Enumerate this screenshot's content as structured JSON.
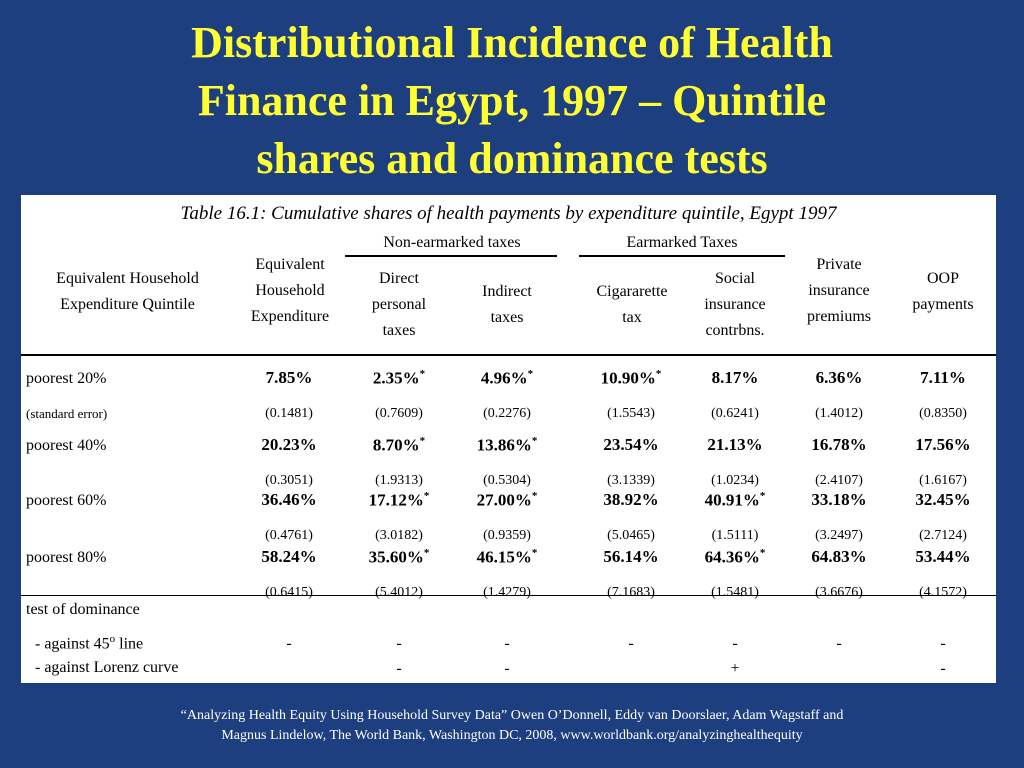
{
  "title": {
    "line1": "Distributional Incidence of Health",
    "line2": "Finance in Egypt, 1997 – Quintile",
    "line3": "shares and dominance tests"
  },
  "table": {
    "caption": "Table 16.1: Cumulative shares of health payments by expenditure quintile, Egypt 1997",
    "group_headers": {
      "non_earmarked": "Non-earmarked taxes",
      "earmarked": "Earmarked Taxes"
    },
    "columns": [
      {
        "l1": "Equivalent Household",
        "l2": "Expenditure Quintile",
        "l3": ""
      },
      {
        "l1": "Equivalent",
        "l2": "Household",
        "l3": "Expenditure"
      },
      {
        "l1": "Direct",
        "l2": "personal",
        "l3": "taxes"
      },
      {
        "l1": "Indirect",
        "l2": "taxes",
        "l3": ""
      },
      {
        "l1": "Cigararette",
        "l2": "tax",
        "l3": ""
      },
      {
        "l1": "Social",
        "l2": "insurance",
        "l3": "contrbns."
      },
      {
        "l1": "Private",
        "l2": "insurance",
        "l3": "premiums"
      },
      {
        "l1": "OOP",
        "l2": "payments",
        "l3": ""
      }
    ],
    "rows": [
      {
        "label": "poorest 20%",
        "se_label": "(standard error)",
        "values": [
          "7.85%",
          "2.35%",
          "4.96%",
          "10.90%",
          "8.17%",
          "6.36%",
          "7.11%"
        ],
        "stars": [
          "",
          "*",
          "*",
          "*",
          "",
          "",
          ""
        ],
        "se": [
          "(0.1481)",
          "(0.7609)",
          "(0.2276)",
          "(1.5543)",
          "(0.6241)",
          "(1.4012)",
          "(0.8350)"
        ]
      },
      {
        "label": "poorest 40%",
        "se_label": "",
        "values": [
          "20.23%",
          "8.70%",
          "13.86%",
          "23.54%",
          "21.13%",
          "16.78%",
          "17.56%"
        ],
        "stars": [
          "",
          "*",
          "*",
          "",
          "",
          "",
          ""
        ],
        "se": [
          "(0.3051)",
          "(1.9313)",
          "(0.5304)",
          "(3.1339)",
          "(1.0234)",
          "(2.4107)",
          "(1.6167)"
        ]
      },
      {
        "label": "poorest 60%",
        "se_label": "",
        "values": [
          "36.46%",
          "17.12%",
          "27.00%",
          "38.92%",
          "40.91%",
          "33.18%",
          "32.45%"
        ],
        "stars": [
          "",
          "*",
          "*",
          "",
          "*",
          "",
          ""
        ],
        "se": [
          "(0.4761)",
          "(3.0182)",
          "(0.9359)",
          "(5.0465)",
          "(1.5111)",
          "(3.2497)",
          "(2.7124)"
        ]
      },
      {
        "label": "poorest 80%",
        "se_label": "",
        "values": [
          "58.24%",
          "35.60%",
          "46.15%",
          "56.14%",
          "64.36%",
          "64.83%",
          "53.44%"
        ],
        "stars": [
          "",
          "*",
          "*",
          "",
          "*",
          "",
          ""
        ],
        "se": [
          "(0.6415)",
          "(5.4012)",
          "(1.4279)",
          "(7.1683)",
          "(1.5481)",
          "(3.6676)",
          "(4.1572)"
        ]
      }
    ],
    "dominance": {
      "heading": "test of dominance",
      "line45": {
        "label_pre": "- against 45",
        "label_sup": "o",
        "label_post": " line",
        "values": [
          "-",
          "-",
          "-",
          "-",
          "-",
          "-",
          "-"
        ]
      },
      "lorenz": {
        "label": "- against Lorenz curve",
        "values": [
          "",
          "-",
          "-",
          "",
          "+",
          "",
          "-"
        ]
      }
    }
  },
  "source": {
    "line1": "“Analyzing Health Equity Using Household Survey Data” Owen O’Donnell, Eddy van Doorslaer, Adam Wagstaff and",
    "line2": "Magnus Lindelow, The World Bank, Washington DC, 2008, www.worldbank.org/analyzinghealthequity"
  }
}
